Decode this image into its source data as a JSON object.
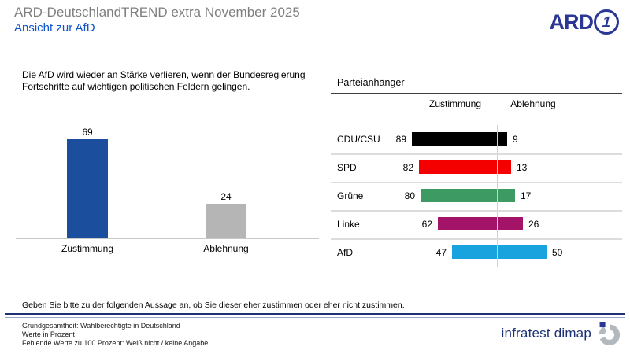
{
  "header": {
    "title": "ARD-DeutschlandTREND extra November 2025",
    "subtitle": "Ansicht zur AfD"
  },
  "ard_logo": {
    "text": "ARD",
    "one": "1"
  },
  "statement_lines": [
    "Die AfD wird wieder an Stärke verlieren, wenn der Bundesregierung",
    "Fortschritte auf wichtigen politischen Feldern gelingen."
  ],
  "chart_data": [
    {
      "type": "bar",
      "title": "",
      "categories": [
        "Zustimmung",
        "Ablehnung"
      ],
      "values": [
        69,
        24
      ],
      "colors": [
        "#1b4f9e",
        "#b5b5b5"
      ],
      "ylim": [
        0,
        100
      ],
      "grid": false,
      "value_labels": true
    },
    {
      "type": "bar",
      "subtype": "diverging-horizontal",
      "title": "Parteianhänger",
      "columns": [
        "Zustimmung",
        "Ablehnung"
      ],
      "rows": [
        {
          "party": "CDU/CSU",
          "zustimmung": 89,
          "ablehnung": 9,
          "color": "#000000"
        },
        {
          "party": "SPD",
          "zustimmung": 82,
          "ablehnung": 13,
          "color": "#f40000"
        },
        {
          "party": "Grüne",
          "zustimmung": 80,
          "ablehnung": 17,
          "color": "#3d9a63"
        },
        {
          "party": "Linke",
          "zustimmung": 62,
          "ablehnung": 26,
          "color": "#a31368"
        },
        {
          "party": "AfD",
          "zustimmung": 47,
          "ablehnung": 50,
          "color": "#18a2de"
        }
      ],
      "xlim": [
        0,
        100
      ]
    }
  ],
  "question": "Geben Sie bitte zu der folgenden Aussage an, ob Sie dieser eher zustimmen oder eher nicht zustimmen.",
  "footer_lines": [
    "Grundgesamtheit: Wahlberechtigte in Deutschland",
    "Werte in Prozent",
    "Fehlende Werte zu 100 Prozent: Weiß nicht / keine Angabe"
  ],
  "brand": "infratest dimap",
  "colors": {
    "title_gray": "#7f7f7f",
    "subtitle_blue": "#1155cc",
    "ard_navy": "#2a3795",
    "bottom_rule_navy": "#203178",
    "separator_gray": "#dcdcdc"
  }
}
